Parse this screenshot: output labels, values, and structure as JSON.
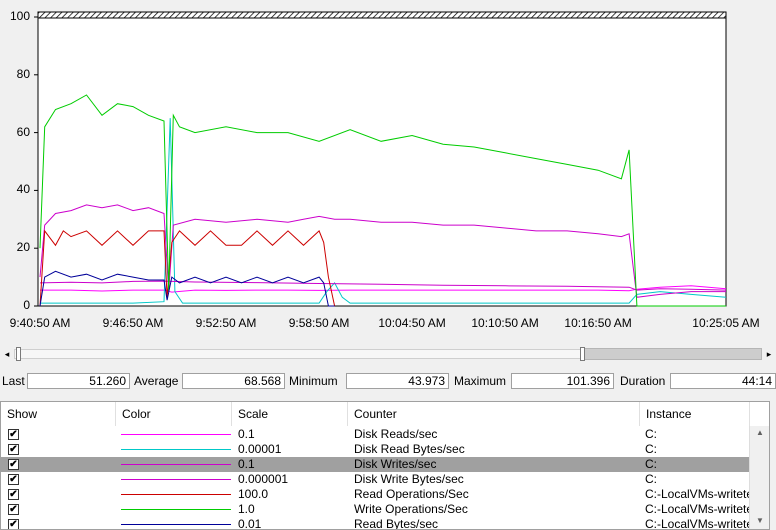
{
  "chart_data": {
    "type": "line",
    "ylim": [
      0,
      100
    ],
    "y_ticks": [
      "0",
      "20",
      "40",
      "60",
      "80",
      "100"
    ],
    "x_ticks": [
      "9:40:50 AM",
      "9:46:50 AM",
      "9:52:50 AM",
      "9:58:50 AM",
      "10:04:50 AM",
      "10:10:50 AM",
      "10:16:50 AM",
      "10:25:05 AM"
    ],
    "x_tick_minutes": [
      0,
      6,
      12,
      18,
      24,
      30,
      36,
      44.25
    ],
    "xlim_minutes": [
      0,
      44.25
    ],
    "grid": false,
    "series": [
      {
        "name": "Disk Reads/sec",
        "color": "#ff00ff",
        "x": [
          0,
          2,
          4,
          6,
          8,
          8.5,
          10,
          12,
          14,
          16,
          18,
          20,
          24,
          28,
          32,
          36,
          38,
          38.5,
          40,
          42,
          44.25
        ],
        "y": [
          5.5,
          5.5,
          5.2,
          5.5,
          5.5,
          4.8,
          5.5,
          5.4,
          5.5,
          5.5,
          5.4,
          5.5,
          5.5,
          5.5,
          5.5,
          5.5,
          5.3,
          5.8,
          6.5,
          7.0,
          6.0
        ]
      },
      {
        "name": "Disk Read Bytes/sec",
        "color": "#00c8c8",
        "x": [
          0,
          2,
          4,
          6,
          8,
          8.4,
          8.7,
          9.2,
          11,
          14,
          17,
          18,
          18.5,
          19,
          19.5,
          20,
          24,
          28,
          32,
          36,
          38,
          38.5,
          40,
          42,
          44.25
        ],
        "y": [
          1,
          1,
          1,
          1,
          1.5,
          65,
          5,
          1,
          1,
          1,
          1,
          1,
          5,
          8,
          3,
          1,
          1,
          1,
          1,
          1,
          1,
          4,
          5,
          4,
          3
        ]
      },
      {
        "name": "Disk Writes/sec",
        "color": "#cc00cc",
        "x": [
          0,
          0.3,
          1,
          2,
          3,
          4,
          5,
          6,
          7,
          8,
          8.3,
          8.6,
          10,
          12,
          14,
          16,
          17,
          18,
          19,
          20,
          22,
          24,
          26,
          28,
          30,
          32,
          34,
          36,
          37.5,
          38,
          38.5,
          40,
          42,
          44.25
        ],
        "y": [
          10,
          28,
          32,
          33,
          35,
          34,
          35,
          33,
          34,
          32,
          5,
          28,
          30,
          29,
          30,
          29,
          30,
          31,
          30,
          30,
          29,
          29,
          28,
          28,
          27,
          26,
          26,
          25,
          24,
          25,
          3,
          4,
          5,
          5
        ]
      },
      {
        "name": "Disk Write Bytes/sec",
        "color": "#cc00cc",
        "x": [
          0,
          2,
          4,
          6,
          8,
          10,
          14,
          18,
          22,
          26,
          30,
          34,
          38,
          38.5,
          40,
          42,
          44.25
        ],
        "y": [
          8,
          8.2,
          8,
          8.5,
          8.6,
          8.3,
          8.1,
          7.8,
          7.5,
          7.2,
          7,
          6.8,
          6.5,
          5.5,
          6.0,
          5.8,
          5.5
        ]
      },
      {
        "name": "Read Operations/Sec",
        "color": "#cc0000",
        "x": [
          0,
          0.3,
          1,
          1.5,
          2,
          3,
          4,
          5,
          6,
          7,
          8,
          8.2,
          8.5,
          9,
          10,
          11,
          12,
          13,
          14,
          15,
          16,
          17,
          18,
          18.3,
          18.6,
          19
        ],
        "y": [
          0,
          26,
          21,
          26,
          24,
          26,
          21,
          26,
          21,
          26,
          26,
          3,
          22,
          26,
          21,
          26,
          21,
          21,
          26,
          21,
          26,
          21,
          26,
          22,
          10,
          0
        ]
      },
      {
        "name": "Write Operations/Sec",
        "color": "#00cc00",
        "x": [
          0,
          0.3,
          1,
          2,
          3,
          4,
          5,
          6,
          7,
          8,
          8.3,
          8.6,
          9,
          10,
          12,
          14,
          16,
          18,
          20,
          22,
          24,
          26,
          28,
          30,
          32,
          34,
          36,
          37.5,
          38,
          38.5,
          40,
          42,
          44.25
        ],
        "y": [
          20,
          62,
          68,
          70,
          73,
          66,
          70,
          69,
          66,
          64,
          5,
          66,
          62,
          60,
          62,
          60,
          60,
          57,
          61,
          57,
          59,
          56,
          55,
          53,
          51,
          49,
          47,
          44,
          54,
          0,
          0,
          0,
          0
        ]
      },
      {
        "name": "Read Bytes/sec",
        "color": "#000099",
        "x": [
          0,
          0.3,
          1,
          2,
          3,
          4,
          5,
          6,
          7,
          8,
          8.2,
          8.5,
          9,
          10,
          11,
          12,
          13,
          14,
          15,
          16,
          17,
          18,
          18.3,
          18.6,
          19
        ],
        "y": [
          0,
          10,
          12,
          10,
          11,
          9,
          11,
          10,
          9,
          9,
          2,
          10,
          8,
          10,
          8,
          10,
          8,
          10,
          8,
          10,
          8,
          10,
          8,
          0,
          0
        ]
      }
    ]
  },
  "stats": {
    "last_label": "Last",
    "last_value": "51.260",
    "average_label": "Average",
    "average_value": "68.568",
    "minimum_label": "Minimum",
    "minimum_value": "43.973",
    "maximum_label": "Maximum",
    "maximum_value": "101.396",
    "duration_label": "Duration",
    "duration_value": "44:14"
  },
  "timeline_scrollbar": {
    "left_arrow": "◂",
    "right_arrow": "▸",
    "thumb_start_fraction": 0.76,
    "thumb_end_fraction": 1.0
  },
  "legend": {
    "headers": {
      "show": "Show",
      "color": "Color",
      "scale": "Scale",
      "counter": "Counter",
      "instance": "Instance"
    },
    "rows": [
      {
        "checked": "✔",
        "color": "#ff00ff",
        "scale": "0.1",
        "counter": "Disk Reads/sec",
        "instance": "C:",
        "selected": false
      },
      {
        "checked": "✔",
        "color": "#00c8c8",
        "scale": "0.00001",
        "counter": "Disk Read Bytes/sec",
        "instance": "C:",
        "selected": false
      },
      {
        "checked": "✔",
        "color": "#cc00cc",
        "scale": "0.1",
        "counter": "Disk Writes/sec",
        "instance": "C:",
        "selected": true
      },
      {
        "checked": "✔",
        "color": "#cc00cc",
        "scale": "0.000001",
        "counter": "Disk Write Bytes/sec",
        "instance": "C:",
        "selected": false
      },
      {
        "checked": "✔",
        "color": "#cc0000",
        "scale": "100.0",
        "counter": "Read Operations/Sec",
        "instance": "C:-LocalVMs-writete",
        "selected": false
      },
      {
        "checked": "✔",
        "color": "#00cc00",
        "scale": "1.0",
        "counter": "Write Operations/Sec",
        "instance": "C:-LocalVMs-writete",
        "selected": false
      },
      {
        "checked": "✔",
        "color": "#000099",
        "scale": "0.01",
        "counter": "Read Bytes/sec",
        "instance": "C:-LocalVMs-writete",
        "selected": false
      }
    ],
    "scroll_up": "▲",
    "scroll_down": "▼"
  }
}
